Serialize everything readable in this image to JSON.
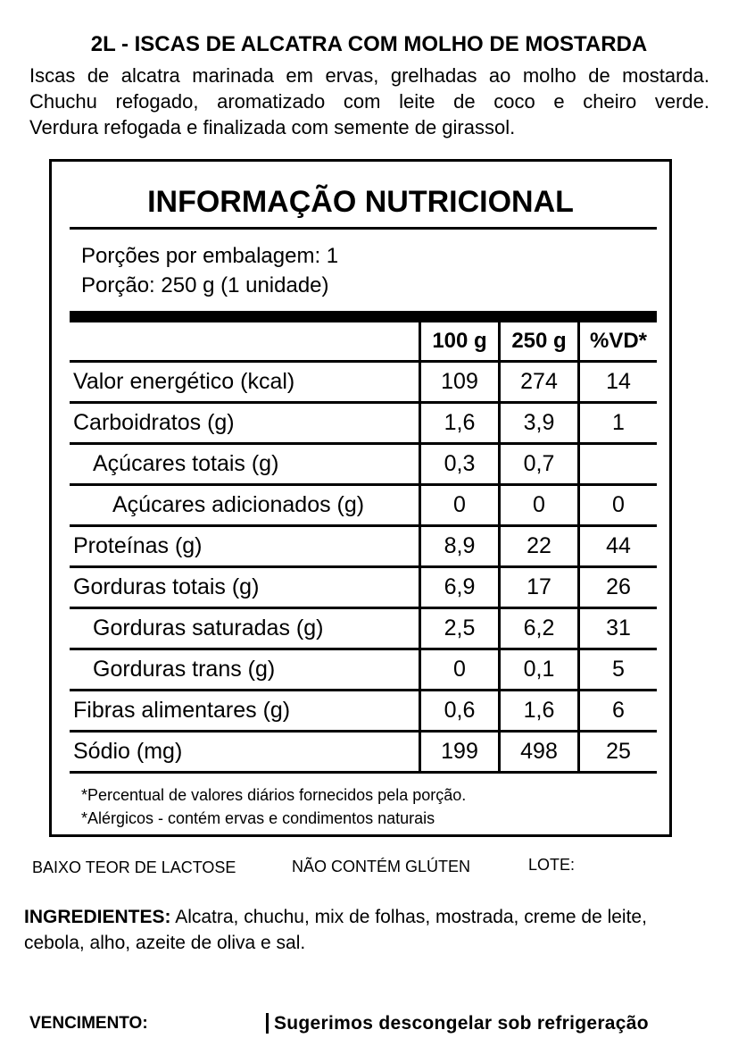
{
  "header": {
    "title": "2L - ISCAS DE ALCATRA COM MOLHO DE MOSTARDA",
    "description": [
      "Iscas de alcatra marinada em ervas, grelhadas ao molho de mostarda.",
      "Chuchu refogado, aromatizado com leite de coco e cheiro verde.",
      "Verdura refogada e finalizada com semente de girassol."
    ]
  },
  "nutrition": {
    "title": "INFORMAÇÃO NUTRICIONAL",
    "servings": [
      "Porções por embalagem: 1",
      "Porção: 250 g (1 unidade)"
    ],
    "table": {
      "columns": [
        "100 g",
        "250 g",
        "%VD*"
      ],
      "rows": [
        [
          "Valor energético (kcal)",
          "109",
          "274",
          "14"
        ],
        [
          "Carboidratos (g)",
          "1,6",
          "3,9",
          "1"
        ],
        [
          "Açúcares totais (g)",
          "0,3",
          "0,7",
          null
        ],
        [
          "Açúcares adicionados (g)",
          "0",
          "0",
          "0"
        ],
        [
          "Proteínas (g)",
          "8,9",
          "22",
          "44"
        ],
        [
          "Gorduras totais (g)",
          "6,9",
          "17",
          "26"
        ],
        [
          "Gorduras saturadas (g)",
          "2,5",
          "6,2",
          "31"
        ],
        [
          "Gorduras trans (g)",
          "0",
          "0,1",
          "5"
        ],
        [
          "Fibras alimentares (g)",
          "0,6",
          "1,6",
          "6"
        ],
        [
          "Sódio (mg)",
          "199",
          "498",
          "25"
        ]
      ]
    },
    "footnotes": [
      "*Percentual de valores diários fornecidos pela porção.",
      "*Alérgicos - contém ervas e condimentos naturais"
    ]
  },
  "claims": [
    "BAIXO TEOR DE LACTOSE",
    "NÃO CONTÉM GLÚTEN",
    "LOTE:"
  ],
  "ingredients": {
    "label": "INGREDIENTES:",
    "text": "Alcatra, chuchu, mix de folhas, mostrada, creme de leite, cebola, alho, azeite de oliva e sal."
  },
  "footer": {
    "expiry": "VENCIMENTO:",
    "storage": "Sugerimos descongelar sob refrigeração"
  }
}
